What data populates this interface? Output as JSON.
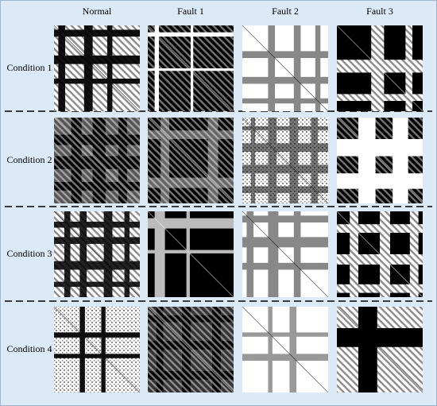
{
  "column_headers": [
    "Normal",
    "Fault 1",
    "Fault 2",
    "Fault 3"
  ],
  "row_labels": [
    "Condition 1",
    "Condition 2",
    "Condition 3",
    "Condition 4"
  ]
}
